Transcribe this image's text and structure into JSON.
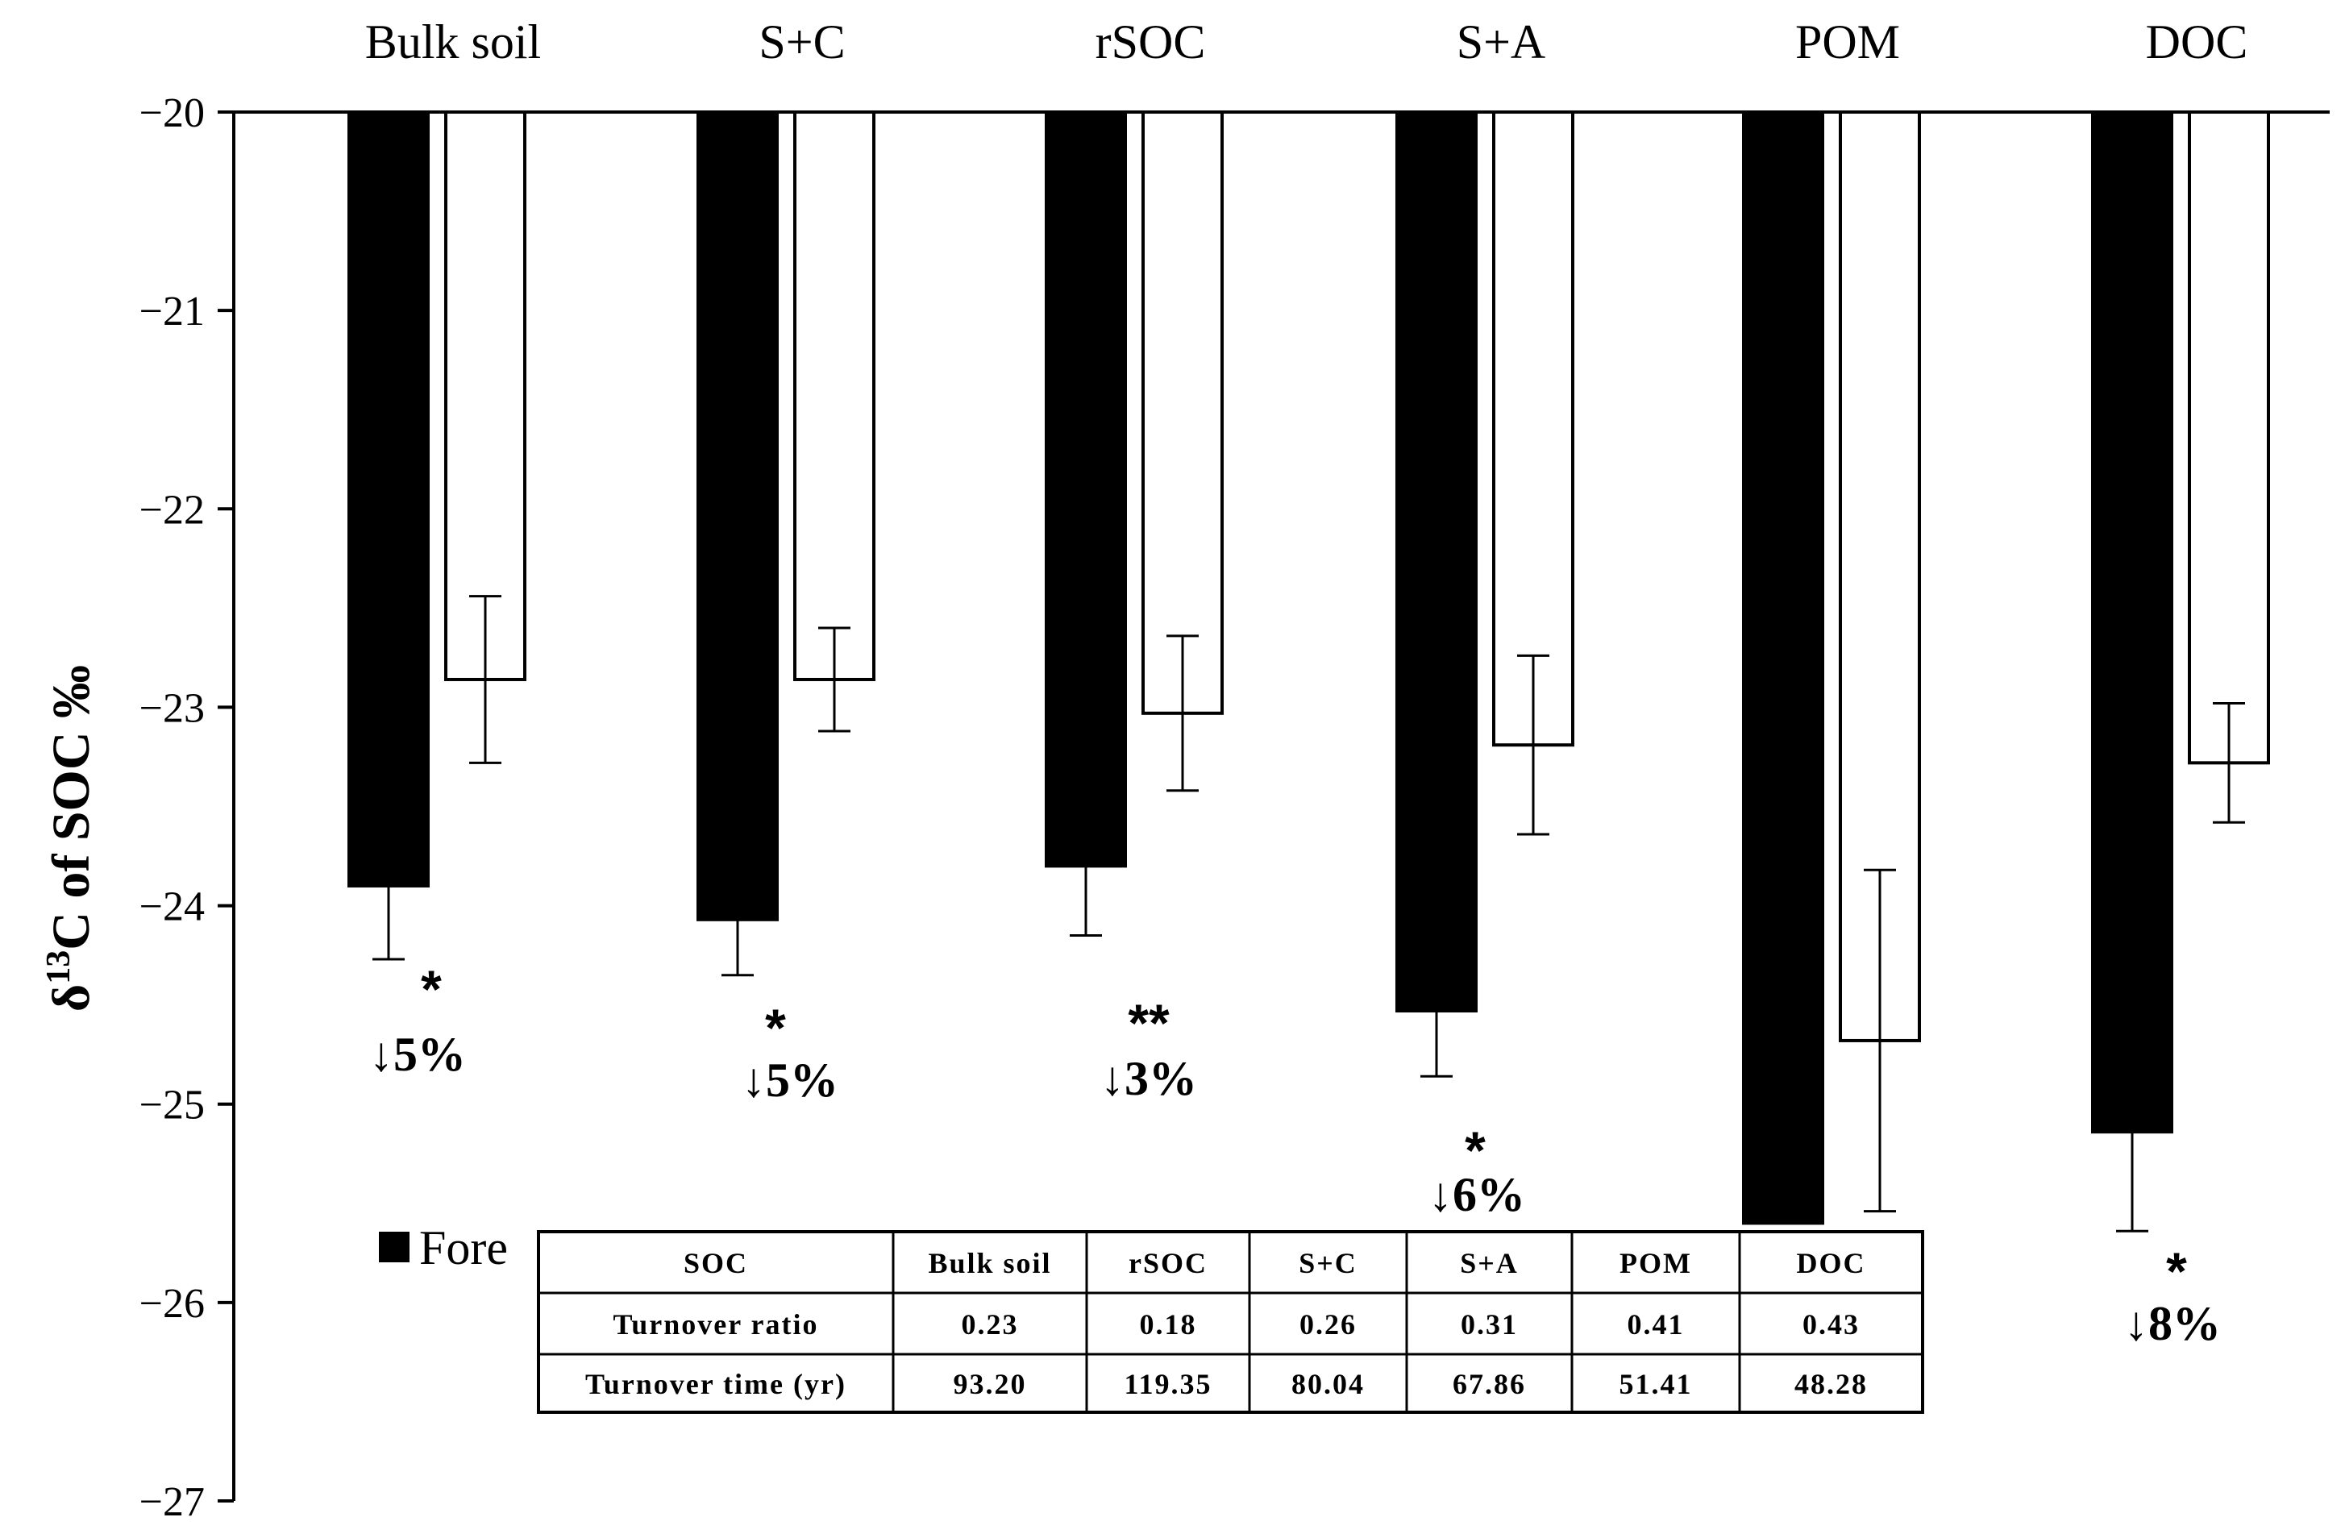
{
  "chart_data": {
    "type": "bar",
    "title": "",
    "ylabel_prefix": "δ",
    "ylabel_sup": "13",
    "ylabel_suffix": "C of SOC ‰",
    "xlabel": "",
    "ylim": [
      -27,
      -20
    ],
    "y_ticks": [
      -20,
      -21,
      -22,
      -23,
      -24,
      -25,
      -26,
      -27
    ],
    "y_tick_labels": [
      "−20",
      "−21",
      "−22",
      "−23",
      "−24",
      "−25",
      "−26",
      "−27"
    ],
    "categories": [
      "Bulk soil",
      "S+C",
      "rSOC",
      "S+A",
      "POM",
      "DOC"
    ],
    "series": [
      {
        "name": "Fore",
        "color": "#000000",
        "values": [
          -23.9,
          -24.07,
          -23.8,
          -24.53,
          -25.6,
          -25.14
        ],
        "errors": [
          0.37,
          0.28,
          0.35,
          0.33,
          null,
          0.5
        ]
      },
      {
        "color": "#ffffff",
        "values": [
          -22.86,
          -22.86,
          -23.03,
          -23.19,
          -24.68,
          -23.28
        ],
        "errors": [
          0.42,
          0.26,
          0.39,
          0.45,
          0.86,
          0.3
        ]
      }
    ],
    "annotations": [
      {
        "category": "Bulk soil",
        "stars": "*",
        "change": "↓5%"
      },
      {
        "category": "S+C",
        "stars": "*",
        "change": "↓5%"
      },
      {
        "category": "rSOC",
        "stars": "**",
        "change": "↓3%"
      },
      {
        "category": "S+A",
        "stars": "*",
        "change": "↓6%"
      },
      {
        "category": "DOC",
        "stars": "*",
        "change": "↓8%"
      }
    ],
    "legend": {
      "items": [
        "Fore"
      ],
      "placement": "bottom-left"
    },
    "table": {
      "headers": [
        "SOC",
        "Bulk soil",
        "rSOC",
        "S+C",
        "S+A",
        "POM",
        "DOC"
      ],
      "rows": [
        [
          "Turnover ratio",
          "0.23",
          "0.18",
          "0.26",
          "0.31",
          "0.41",
          "0.43"
        ],
        [
          "Turnover time (yr)",
          "93.20",
          "119.35",
          "80.04",
          "67.86",
          "51.41",
          "48.28"
        ]
      ]
    }
  }
}
